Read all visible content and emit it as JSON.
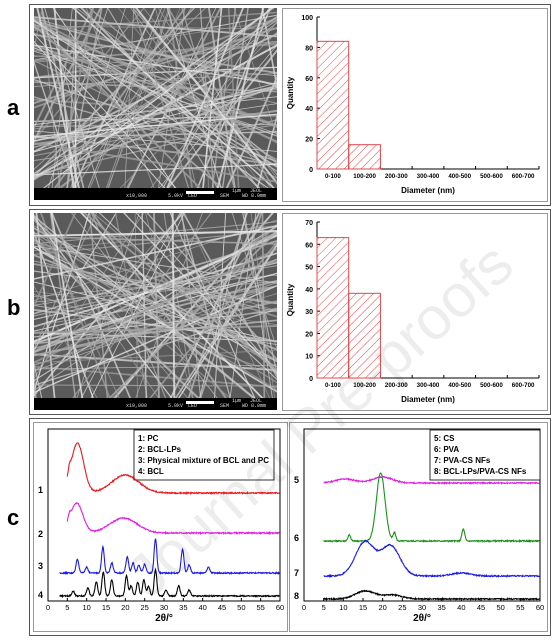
{
  "panel_labels": [
    "a",
    "b",
    "c"
  ],
  "sem": [
    {
      "magnification": "x10,000",
      "voltage": "5.0kV",
      "mode": "LED",
      "scale": "1μm",
      "brand": "JEOL",
      "type": "SEM",
      "wd": "WD 8.0mm"
    },
    {
      "magnification": "x10,000",
      "voltage": "5.0kV",
      "mode": "LED",
      "scale": "1μm",
      "brand": "JEOL",
      "type": "SEM",
      "wd": "WD 8.0mm"
    }
  ],
  "watermark": "Journal Pre-proofs",
  "chart_data": [
    {
      "type": "bar",
      "categories": [
        "0-100",
        "100-200",
        "200-300",
        "300-400",
        "400-500",
        "500-600",
        "600-700"
      ],
      "values": [
        84,
        16,
        0,
        0,
        0,
        0,
        0
      ],
      "xlabel": "Diameter (nm)",
      "ylabel": "Quantity",
      "ylim": [
        0,
        100
      ],
      "yticks": [
        0,
        20,
        40,
        60,
        80,
        100
      ],
      "bar_color": "#e0484a"
    },
    {
      "type": "bar",
      "categories": [
        "0-100",
        "100-200",
        "200-300",
        "300-400",
        "400-500",
        "500-600",
        "600-700"
      ],
      "values": [
        63,
        38,
        0,
        0,
        0,
        0,
        0
      ],
      "xlabel": "Diameter (nm)",
      "ylabel": "Quantity",
      "ylim": [
        0,
        70
      ],
      "yticks": [
        0,
        10,
        20,
        30,
        40,
        50,
        60,
        70
      ],
      "bar_color": "#e0484a"
    },
    {
      "type": "line",
      "xlabel": "2θ/°",
      "xlim": [
        0,
        60
      ],
      "xticks": [
        0,
        5,
        10,
        15,
        20,
        25,
        30,
        35,
        40,
        45,
        50,
        55,
        60
      ],
      "legend": [
        "1: PC",
        "2: BCL-LPs",
        "3: Physical mixture of BCL and PC",
        "4: BCL"
      ],
      "series": [
        {
          "label": "1",
          "color": "#e8191c",
          "peaks": [
            [
              5.5,
              8
            ],
            [
              7.6,
              50
            ],
            [
              20,
              18
            ]
          ]
        },
        {
          "label": "2",
          "color": "#e020e0",
          "peaks": [
            [
              5.5,
              6
            ],
            [
              7.4,
              30
            ],
            [
              19.5,
              15
            ]
          ]
        },
        {
          "label": "3",
          "color": "#1a1ae6",
          "peaks": [
            [
              7.6,
              14
            ],
            [
              10,
              6
            ],
            [
              14.2,
              26
            ],
            [
              16.5,
              10
            ],
            [
              20.5,
              16
            ],
            [
              22,
              10
            ],
            [
              23.5,
              8
            ],
            [
              25,
              9
            ],
            [
              27.8,
              34
            ],
            [
              34.8,
              24
            ],
            [
              36.5,
              8
            ],
            [
              41.5,
              6
            ]
          ]
        },
        {
          "label": "4",
          "color": "#000000",
          "peaks": [
            [
              6.5,
              5
            ],
            [
              10.3,
              8
            ],
            [
              12.5,
              14
            ],
            [
              14.3,
              24
            ],
            [
              16.5,
              16
            ],
            [
              20.3,
              20
            ],
            [
              21.5,
              10
            ],
            [
              23.2,
              14
            ],
            [
              24.8,
              16
            ],
            [
              26,
              10
            ],
            [
              27.8,
              26
            ],
            [
              30.5,
              6
            ],
            [
              33.8,
              10
            ],
            [
              36.5,
              6
            ]
          ]
        }
      ]
    },
    {
      "type": "line",
      "xlabel": "2θ/°",
      "xlim": [
        0,
        60
      ],
      "xticks": [
        0,
        5,
        10,
        15,
        20,
        25,
        30,
        35,
        40,
        45,
        50,
        55,
        60
      ],
      "legend": [
        "5: CS",
        "6: PVA",
        "7: PVA-CS NFs",
        "8: BCL-LPs/PVA-CS NFs"
      ],
      "series": [
        {
          "label": "5",
          "color": "#e020e0",
          "peaks": [
            [
              10.5,
              4
            ],
            [
              20,
              6
            ]
          ]
        },
        {
          "label": "6",
          "color": "#199019",
          "peaks": [
            [
              11.5,
              6
            ],
            [
              19.5,
              68
            ],
            [
              23,
              8
            ],
            [
              40.5,
              12
            ]
          ]
        },
        {
          "label": "7",
          "color": "#1a1ae6",
          "peaks": [
            [
              15.5,
              34
            ],
            [
              22,
              30
            ],
            [
              40,
              3
            ]
          ]
        },
        {
          "label": "8",
          "color": "#000000",
          "peaks": [
            [
              15.5,
              8
            ],
            [
              22.5,
              4
            ]
          ]
        }
      ]
    }
  ]
}
